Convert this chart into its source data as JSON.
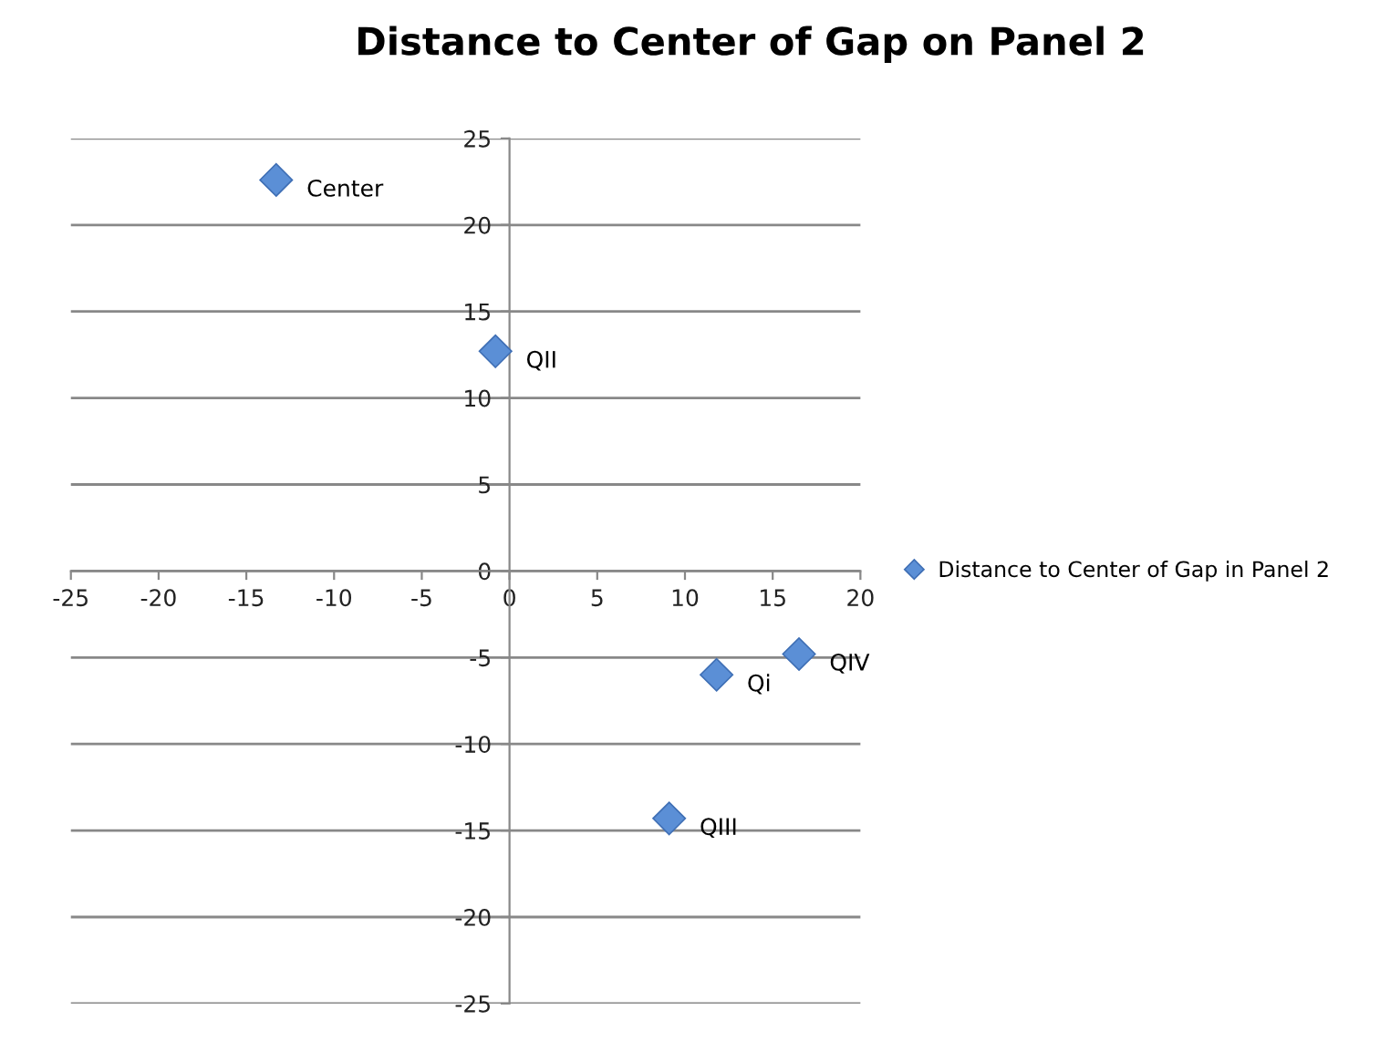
{
  "chart_data": {
    "type": "scatter",
    "title": "Distance to Center of Gap on Panel 2",
    "series": [
      {
        "name": "Distance to Center of Gap in Panel 2",
        "color": "#5b8fd6",
        "x": [
          11.8,
          -0.8,
          9.1,
          16.5,
          -13.3
        ],
        "values": [
          -6.0,
          12.7,
          -14.3,
          -4.8,
          22.6
        ]
      }
    ],
    "annotations": [
      {
        "text": "Qi",
        "x": 11.8,
        "y": -6.0
      },
      {
        "text": "QII",
        "x": -0.8,
        "y": 12.7
      },
      {
        "text": "QIII",
        "x": 9.1,
        "y": -14.3
      },
      {
        "text": "QIV",
        "x": 16.5,
        "y": -4.8
      },
      {
        "text": "Center",
        "x": -13.3,
        "y": 22.6
      }
    ],
    "xlim": [
      -25,
      20
    ],
    "xticks": [
      -25,
      -20,
      -15,
      -10,
      -5,
      0,
      5,
      10,
      15,
      20
    ],
    "ylim": [
      -25,
      25
    ],
    "yticks": [
      -25,
      -20,
      -15,
      -10,
      -5,
      0,
      5,
      10,
      15,
      20,
      25
    ],
    "grid": "y",
    "legend": "right",
    "marker": "diamond"
  }
}
